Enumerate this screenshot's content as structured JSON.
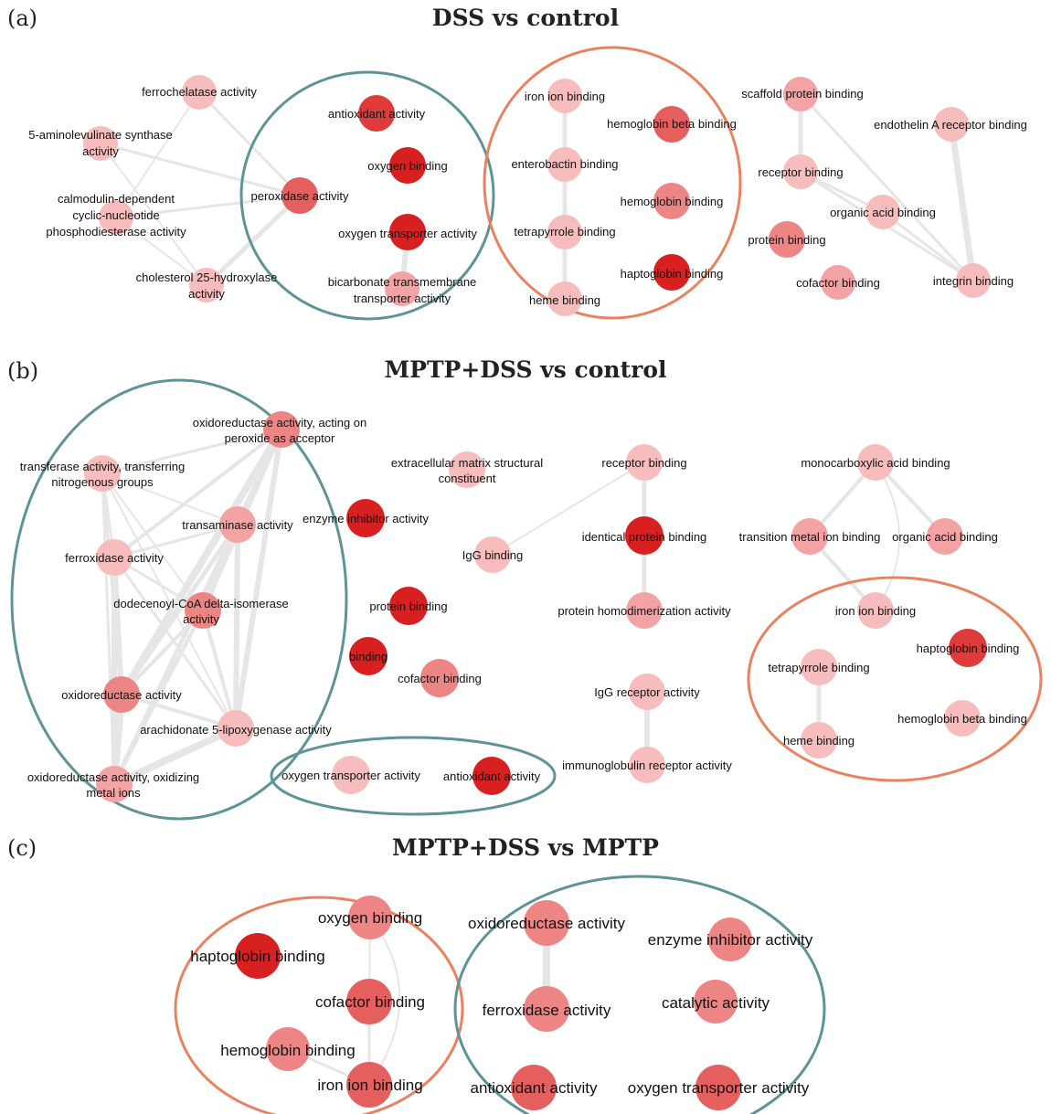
{
  "colors": {
    "level1": "#f7bcbc",
    "level2": "#f3a3a3",
    "level3": "#ee8585",
    "level4": "#e65f5f",
    "level5": "#df3b3b",
    "level6": "#d92020",
    "edge": "#e6e6e6",
    "group_teal": "#5e9496",
    "group_orange": "#ea8260"
  },
  "panels": [
    {
      "id": "a",
      "label": "(a)",
      "title": "DSS vs control",
      "nodes": {
        "ferrochelatase": {
          "lines": [
            "ferrochelatase activity"
          ],
          "level": 1
        },
        "aminolevulinate": {
          "lines": [
            "5-aminolevulinate synthase",
            "activity"
          ],
          "level": 1
        },
        "calmodulin": {
          "lines": [
            "calmodulin-dependent",
            "cyclic-nucleotide",
            "phosphodiesterase activity"
          ],
          "level": 1
        },
        "cholesterol": {
          "lines": [
            "cholesterol 25-hydroxylase",
            "activity"
          ],
          "level": 1
        },
        "peroxidase": {
          "lines": [
            "peroxidase activity"
          ],
          "level": 4
        },
        "antioxidant": {
          "lines": [
            "antioxidant activity"
          ],
          "level": 5
        },
        "oxygen_binding": {
          "lines": [
            "oxygen binding"
          ],
          "level": 6
        },
        "oxygen_transporter": {
          "lines": [
            "oxygen transporter activity"
          ],
          "level": 6
        },
        "bicarbonate": {
          "lines": [
            "bicarbonate transmembrane",
            "transporter activity"
          ],
          "level": 2
        },
        "iron_ion": {
          "lines": [
            "iron ion binding"
          ],
          "level": 1
        },
        "enterobactin": {
          "lines": [
            "enterobactin binding"
          ],
          "level": 1
        },
        "tetrapyrrole": {
          "lines": [
            "tetrapyrrole binding"
          ],
          "level": 1
        },
        "heme": {
          "lines": [
            "heme binding"
          ],
          "level": 1
        },
        "hemoglobin_beta": {
          "lines": [
            "hemoglobin beta binding"
          ],
          "level": 4
        },
        "hemoglobin": {
          "lines": [
            "hemoglobin binding"
          ],
          "level": 3
        },
        "haptoglobin": {
          "lines": [
            "haptoglobin binding"
          ],
          "level": 6
        },
        "scaffold": {
          "lines": [
            "scaffold protein binding"
          ],
          "level": 2
        },
        "receptor": {
          "lines": [
            "receptor binding"
          ],
          "level": 1
        },
        "organic_acid": {
          "lines": [
            "organic acid binding"
          ],
          "level": 1
        },
        "protein": {
          "lines": [
            "protein binding"
          ],
          "level": 3
        },
        "cofactor": {
          "lines": [
            "cofactor binding"
          ],
          "level": 2
        },
        "endothelin": {
          "lines": [
            "endothelin A receptor binding"
          ],
          "level": 1
        },
        "integrin": {
          "lines": [
            "integrin binding"
          ],
          "level": 1
        }
      }
    },
    {
      "id": "b",
      "label": "(b)",
      "title": "MPTP+DSS vs control",
      "nodes": {
        "oxidoreductase_peroxide": {
          "lines": [
            "oxidoreductase activity, acting on",
            "peroxide as acceptor"
          ],
          "level": 3
        },
        "transferase": {
          "lines": [
            "transferase activity, transferring",
            "nitrogenous groups"
          ],
          "level": 1
        },
        "transaminase": {
          "lines": [
            "transaminase activity"
          ],
          "level": 2
        },
        "ferroxidase": {
          "lines": [
            "ferroxidase activity"
          ],
          "level": 1
        },
        "dodecenoyl": {
          "lines": [
            "dodecenoyl-CoA delta-isomerase",
            "activity"
          ],
          "level": 3
        },
        "oxidoreductase": {
          "lines": [
            "oxidoreductase activity"
          ],
          "level": 3
        },
        "arachidonate": {
          "lines": [
            "arachidonate 5-lipoxygenase activity"
          ],
          "level": 1
        },
        "oxidoreductase_metal": {
          "lines": [
            "oxidoreductase activity, oxidizing",
            "metal ions"
          ],
          "level": 2
        },
        "extracellular": {
          "lines": [
            "extracellular matrix structural",
            "constituent"
          ],
          "level": 1
        },
        "enzyme_inhibitor": {
          "lines": [
            "enzyme inhibitor activity"
          ],
          "level": 6
        },
        "protein": {
          "lines": [
            "protein binding"
          ],
          "level": 6
        },
        "binding": {
          "lines": [
            "binding"
          ],
          "level": 6
        },
        "cofactor": {
          "lines": [
            "cofactor binding"
          ],
          "level": 3
        },
        "oxygen_transporter": {
          "lines": [
            "oxygen transporter activity"
          ],
          "level": 1
        },
        "antioxidant": {
          "lines": [
            "antioxidant activity"
          ],
          "level": 6
        },
        "receptor": {
          "lines": [
            "receptor binding"
          ],
          "level": 1
        },
        "igg_binding": {
          "lines": [
            "IgG binding"
          ],
          "level": 1
        },
        "identical_protein": {
          "lines": [
            "identical protein binding"
          ],
          "level": 6
        },
        "protein_homodimer": {
          "lines": [
            "protein homodimerization activity"
          ],
          "level": 2
        },
        "igg_receptor": {
          "lines": [
            "IgG receptor activity"
          ],
          "level": 1
        },
        "immunoglobulin_receptor": {
          "lines": [
            "immunoglobulin receptor activity"
          ],
          "level": 1
        },
        "monocarboxylic": {
          "lines": [
            "monocarboxylic acid binding"
          ],
          "level": 1
        },
        "transition_metal": {
          "lines": [
            "transition metal ion binding"
          ],
          "level": 2
        },
        "organic_acid": {
          "lines": [
            "organic acid binding"
          ],
          "level": 2
        },
        "iron_ion": {
          "lines": [
            "iron ion binding"
          ],
          "level": 1
        },
        "haptoglobin": {
          "lines": [
            "haptoglobin binding"
          ],
          "level": 5
        },
        "tetrapyrrole": {
          "lines": [
            "tetrapyrrole binding"
          ],
          "level": 1
        },
        "heme": {
          "lines": [
            "heme binding"
          ],
          "level": 1
        },
        "hemoglobin_beta": {
          "lines": [
            "hemoglobin beta binding"
          ],
          "level": 1
        }
      }
    },
    {
      "id": "c",
      "label": "(c)",
      "title": "MPTP+DSS vs MPTP",
      "nodes": {
        "oxygen_binding": {
          "lines": [
            "oxygen binding"
          ],
          "level": 3
        },
        "haptoglobin": {
          "lines": [
            "haptoglobin binding"
          ],
          "level": 6
        },
        "cofactor": {
          "lines": [
            "cofactor binding"
          ],
          "level": 4
        },
        "hemoglobin": {
          "lines": [
            "hemoglobin binding"
          ],
          "level": 3
        },
        "iron_ion": {
          "lines": [
            "iron ion binding"
          ],
          "level": 4
        },
        "oxidoreductase": {
          "lines": [
            "oxidoreductase activity"
          ],
          "level": 3
        },
        "enzyme_inhibitor": {
          "lines": [
            "enzyme inhibitor activity"
          ],
          "level": 3
        },
        "ferroxidase": {
          "lines": [
            "ferroxidase activity"
          ],
          "level": 3
        },
        "catalytic": {
          "lines": [
            "catalytic activity"
          ],
          "level": 3
        },
        "antioxidant": {
          "lines": [
            "antioxidant activity"
          ],
          "level": 4
        },
        "oxygen_transporter": {
          "lines": [
            "oxygen transporter activity"
          ],
          "level": 4
        }
      }
    }
  ]
}
